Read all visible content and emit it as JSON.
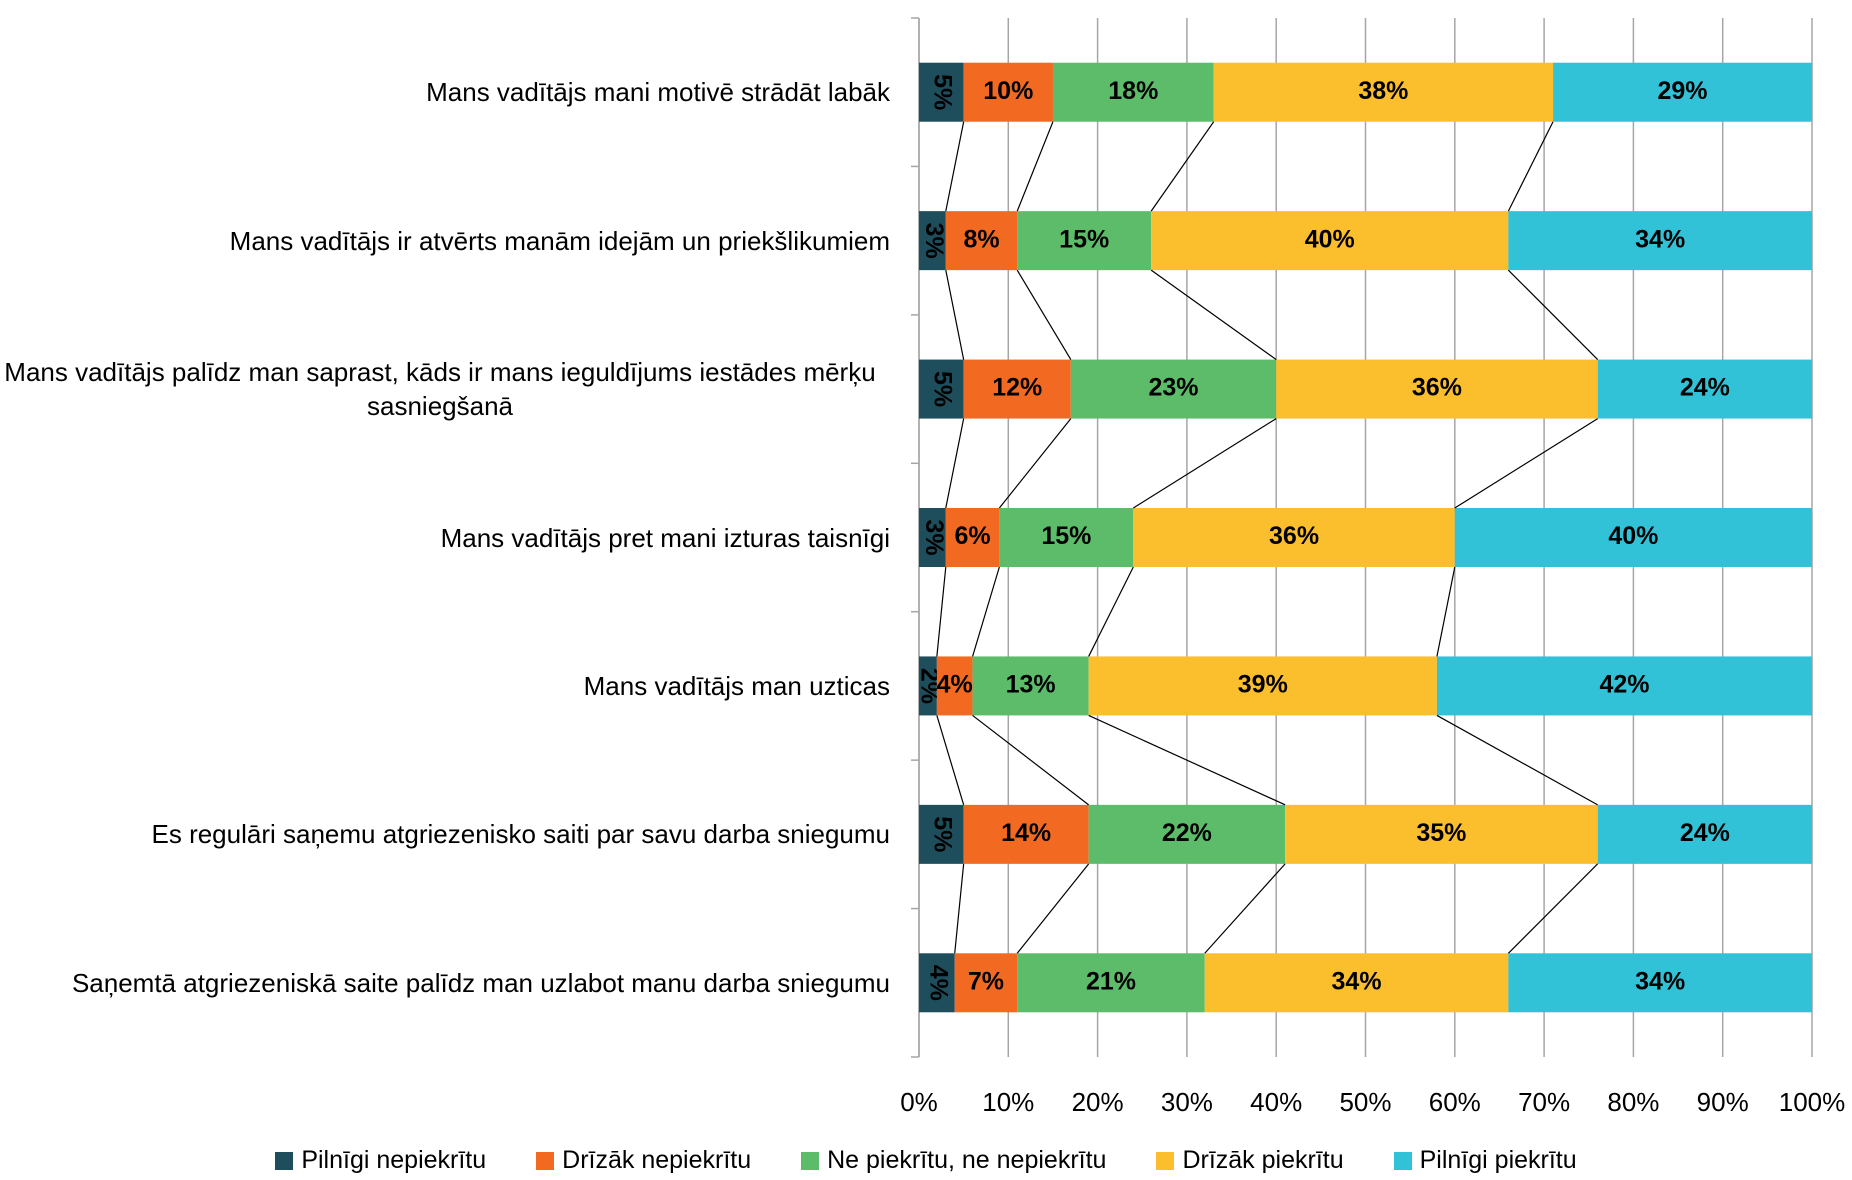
{
  "chart_data": {
    "type": "stacked-bar-horizontal",
    "categories": [
      "Mans vadītājs mani motivē strādāt labāk",
      "Mans vadītājs ir atvērts manām idejām un priekšlikumiem",
      "Mans vadītājs palīdz man saprast, kāds ir mans ieguldījums iestādes mērķu sasniegšanā",
      "Mans vadītājs pret mani izturas taisnīgi",
      "Mans vadītājs man uzticas",
      "Es regulāri saņemu atgriezenisko saiti par savu darba sniegumu",
      "Saņemtā atgriezeniskā saite palīdz man uzlabot manu darba sniegumu"
    ],
    "series": [
      {
        "name": "Pilnīgi nepiekrītu",
        "color": "#1e4d5c",
        "values": [
          5,
          3,
          5,
          3,
          2,
          5,
          4
        ],
        "value_labels": [
          "5%",
          "3%",
          "5%",
          "3%",
          "2%",
          "5%",
          "4%"
        ]
      },
      {
        "name": "Drīzāk nepiekrītu",
        "color": "#f26a22",
        "values": [
          10,
          8,
          12,
          6,
          4,
          14,
          7
        ],
        "value_labels": [
          "10%",
          "8%",
          "12%",
          "6%",
          "4%",
          "14%",
          "7%"
        ]
      },
      {
        "name": "Ne piekrītu, ne nepiekrītu",
        "color": "#5cbc6a",
        "values": [
          18,
          15,
          23,
          15,
          13,
          22,
          21
        ],
        "value_labels": [
          "18%",
          "15%",
          "23%",
          "15%",
          "13%",
          "22%",
          "21%"
        ]
      },
      {
        "name": "Drīzāk piekrītu",
        "color": "#fbbf2e",
        "values": [
          38,
          40,
          36,
          36,
          39,
          35,
          34
        ],
        "value_labels": [
          "38%",
          "40%",
          "36%",
          "36%",
          "39%",
          "35%",
          "34%"
        ]
      },
      {
        "name": "Pilnīgi piekrītu",
        "color": "#31c2d8",
        "values": [
          29,
          34,
          24,
          40,
          42,
          24,
          34
        ],
        "value_labels": [
          "29%",
          "34%",
          "24%",
          "40%",
          "42%",
          "24%",
          "34%"
        ]
      }
    ],
    "xlim": [
      0,
      100
    ],
    "xticks": [
      {
        "value": 0,
        "label": "0%"
      },
      {
        "value": 10,
        "label": "10%"
      },
      {
        "value": 20,
        "label": "20%"
      },
      {
        "value": 30,
        "label": "30%"
      },
      {
        "value": 40,
        "label": "40%"
      },
      {
        "value": 50,
        "label": "50%"
      },
      {
        "value": 60,
        "label": "60%"
      },
      {
        "value": 70,
        "label": "70%"
      },
      {
        "value": 80,
        "label": "80%"
      },
      {
        "value": 90,
        "label": "90%"
      },
      {
        "value": 100,
        "label": "100%"
      }
    ],
    "grid": true,
    "legend": "bottom"
  }
}
